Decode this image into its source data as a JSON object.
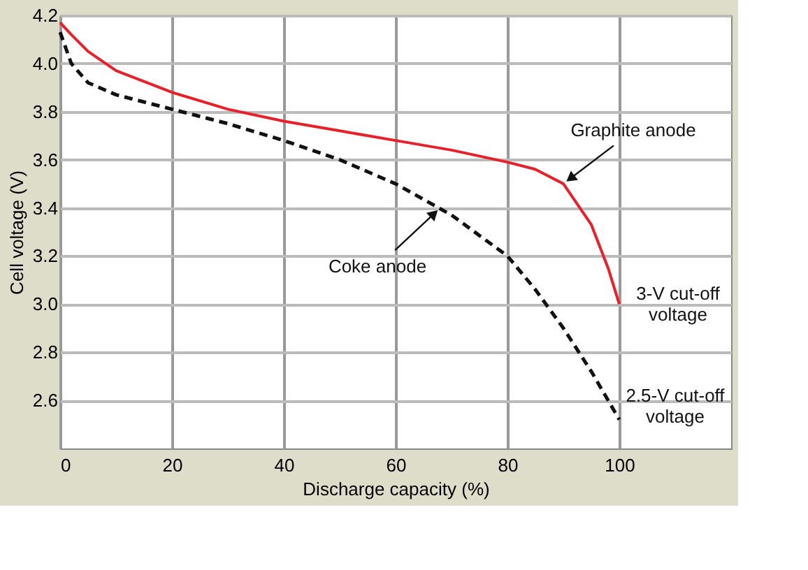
{
  "chart_data": {
    "type": "line",
    "xlabel": "Discharge capacity (%)",
    "ylabel": "Cell voltage (V)",
    "x": [
      0,
      2,
      5,
      10,
      20,
      30,
      40,
      50,
      60,
      70,
      80,
      85,
      90,
      95,
      98,
      100
    ],
    "series": [
      {
        "color": "#e8202a",
        "line_style": "solid",
        "values": [
          4.17,
          4.12,
          4.05,
          3.97,
          3.88,
          3.81,
          3.76,
          3.72,
          3.68,
          3.64,
          3.59,
          3.56,
          3.5,
          3.33,
          3.15,
          3.0
        ]
      },
      {
        "color": "#111111",
        "line_style": "dashed",
        "values": [
          4.13,
          4.0,
          3.92,
          3.87,
          3.81,
          3.75,
          3.68,
          3.6,
          3.5,
          3.37,
          3.2,
          3.06,
          2.9,
          2.72,
          2.6,
          2.52
        ]
      }
    ],
    "annotations": [
      {
        "text": "Graphite anode",
        "x": 90,
        "y": 3.5
      },
      {
        "text": "Coke anode",
        "x": 68,
        "y": 3.4
      },
      {
        "text": "3-V cut-off\nvoltage",
        "x": 100,
        "y": 3.0
      },
      {
        "text": "2.5-V cut-off\nvoltage",
        "x": 100,
        "y": 2.52
      }
    ],
    "xlim": [
      0,
      120
    ],
    "xticks": [
      0,
      20,
      40,
      60,
      80,
      100
    ],
    "ylim": [
      2.4,
      4.2
    ],
    "yticks": [
      2.6,
      2.8,
      {
        "value": 3,
        "label": "3.0"
      },
      3.2,
      3.4,
      3.6,
      3.8,
      {
        "value": 4,
        "label": "4.0"
      },
      4.2
    ],
    "grid": true
  }
}
